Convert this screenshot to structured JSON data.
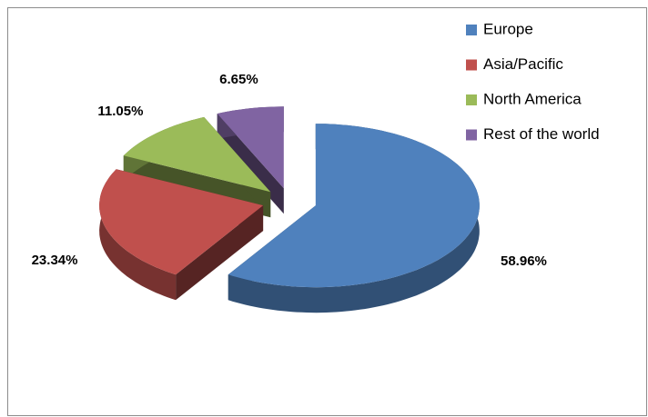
{
  "chart_data": {
    "type": "pie3d",
    "categories": [
      "Europe",
      "Asia/Pacific",
      "North America",
      "Rest of the world"
    ],
    "values": [
      58.96,
      23.34,
      11.05,
      6.65
    ],
    "value_labels": [
      "58.96%",
      "23.34%",
      "11.05%",
      "6.65%"
    ],
    "colors": [
      "#4f81bd",
      "#c0504d",
      "#9bbb59",
      "#8064a2"
    ],
    "exploded": true,
    "legend": "top-right"
  }
}
